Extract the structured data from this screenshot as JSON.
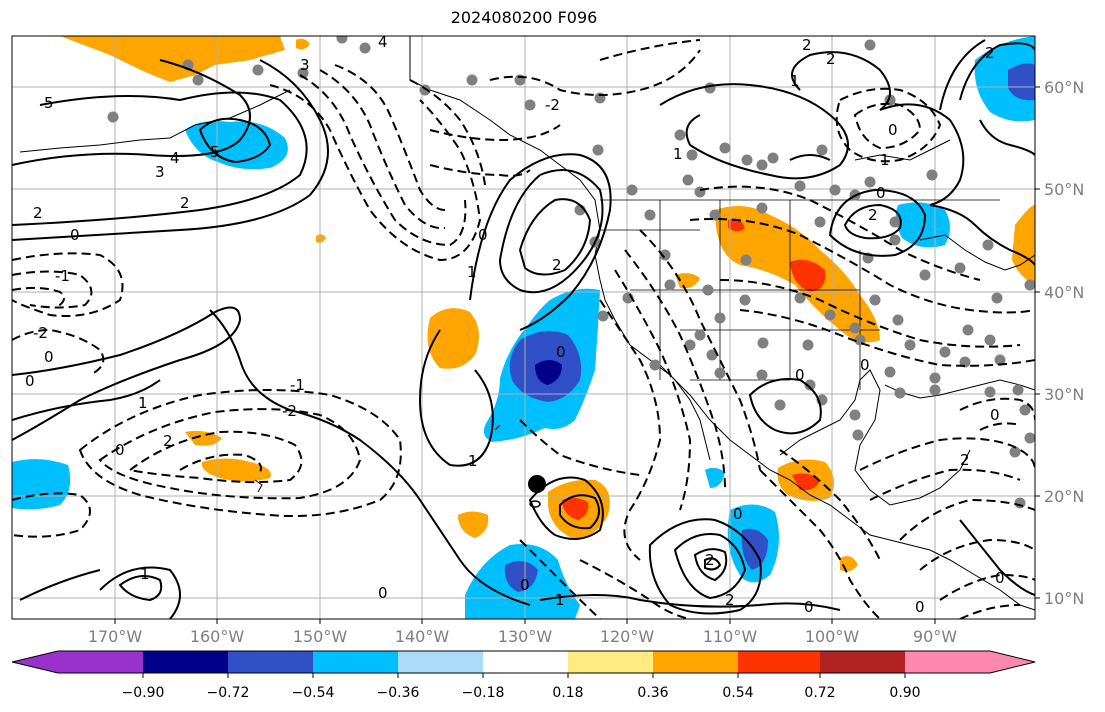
{
  "title": "2024080200 F096",
  "lon_labels": [
    "170°W",
    "160°W",
    "150°W",
    "140°W",
    "130°W",
    "120°W",
    "110°W",
    "100°W",
    "90°W"
  ],
  "lat_labels": [
    "60°N",
    "50°N",
    "40°N",
    "30°N",
    "20°N",
    "10°N"
  ],
  "colorbar": {
    "ticks": [
      "−0.90",
      "−0.72",
      "−0.54",
      "−0.36",
      "−0.18",
      "0.18",
      "0.36",
      "0.54",
      "0.72",
      "0.90"
    ],
    "colors": [
      "#9932cc",
      "#00008b",
      "#3050c8",
      "#00bfff",
      "#aadcfa",
      "#ffffff",
      "#ffeb80",
      "#ffa500",
      "#ff3300",
      "#b22222",
      "#ff88b0"
    ]
  },
  "contour_labels": [
    "5",
    "4",
    "3",
    "2",
    "1",
    "0",
    "-1",
    "-2",
    "5",
    "4",
    "3",
    "2",
    "0",
    "-1",
    "-2",
    "0",
    "1",
    "2",
    "1",
    "0",
    "-2",
    "2",
    "1",
    "0",
    "0",
    "1",
    "2",
    "-1",
    "0",
    "2",
    "0",
    "0",
    "0",
    "-2",
    "1",
    "0",
    "0",
    "0"
  ],
  "map_colors": {
    "positive_light": "#ffa500",
    "positive_strong": "#ff3300",
    "negative_light": "#00bfff",
    "negative_strong": "#3050c8",
    "negative_darkest": "#00008b",
    "station_dot": "#808080"
  }
}
